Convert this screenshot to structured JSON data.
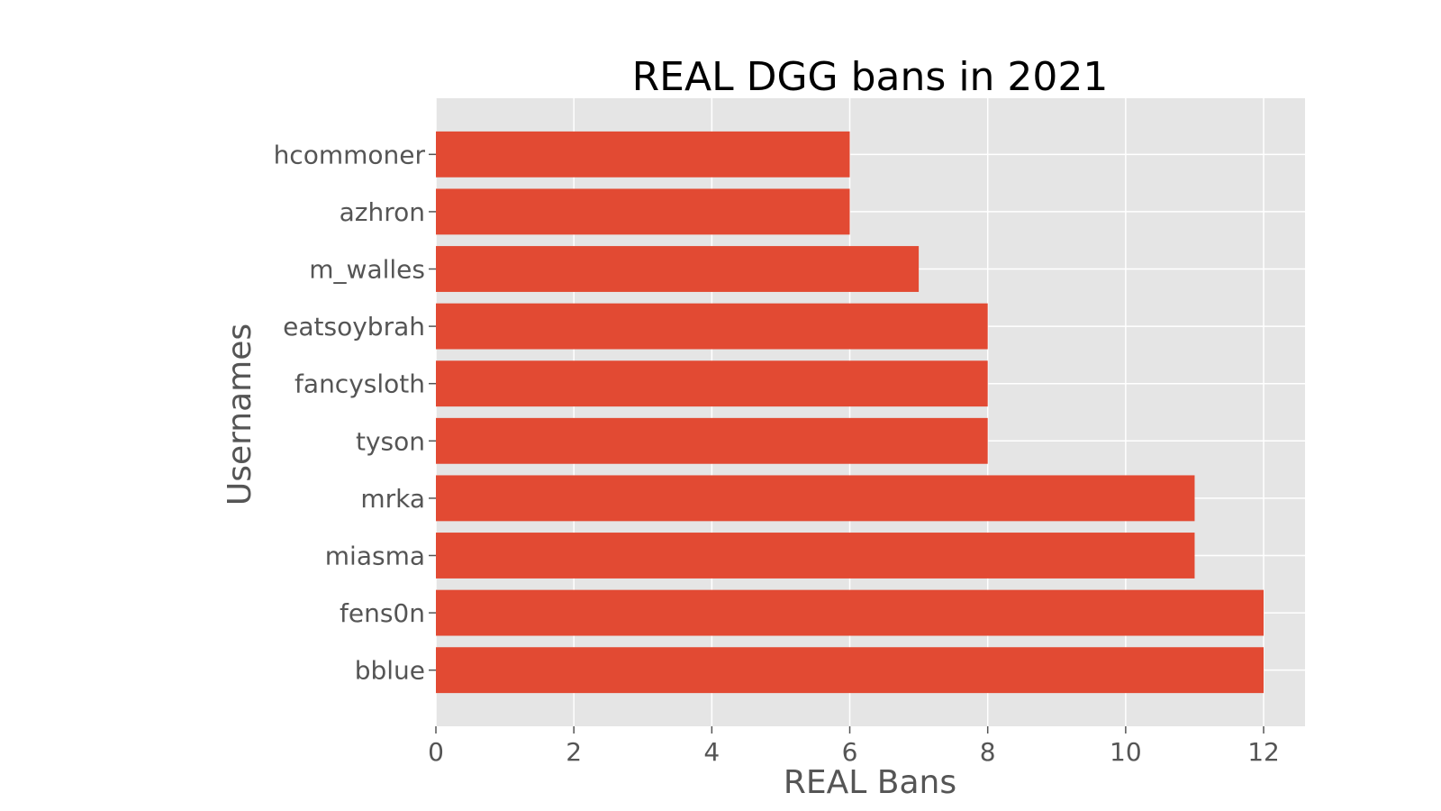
{
  "chart_data": {
    "type": "bar",
    "orientation": "horizontal",
    "title": "REAL DGG bans in 2021",
    "xlabel": "REAL Bans",
    "ylabel": "Usernames",
    "categories": [
      "bblue",
      "fens0n",
      "miasma",
      "mrka",
      "tyson",
      "fancysloth",
      "eatsoybrah",
      "m_walles",
      "azhron",
      "hcommoner"
    ],
    "values": [
      12,
      12,
      11,
      11,
      8,
      8,
      8,
      7,
      6,
      6
    ],
    "xlim": [
      0,
      12.6
    ],
    "xticks": [
      0,
      2,
      4,
      6,
      8,
      10,
      12
    ],
    "grid": true,
    "bar_color": "#E24A33",
    "background_color": "#E5E5E5",
    "grid_color": "#FFFFFF"
  }
}
